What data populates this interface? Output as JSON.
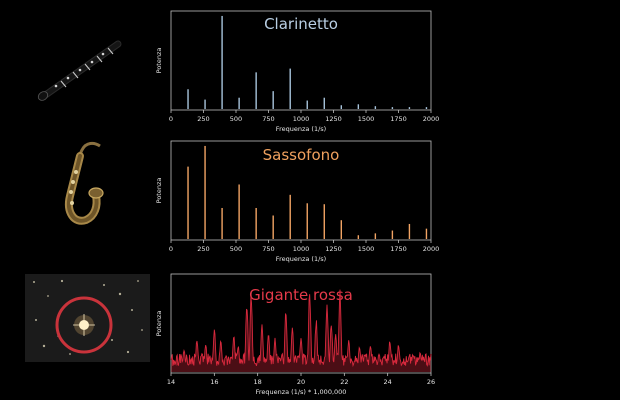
{
  "chart_data": [
    {
      "type": "bar",
      "title": "Clarinetto",
      "title_color": "#b9cfe4",
      "bar_color": "#a8c4dc",
      "xlabel": "Frequenza (1/s)",
      "ylabel": "Potenza",
      "xlim": [
        0,
        2000
      ],
      "ylim": [
        0,
        1
      ],
      "xticks": [
        0,
        250,
        500,
        750,
        1000,
        1250,
        1500,
        1750,
        2000
      ],
      "x": [
        131,
        262,
        393,
        524,
        655,
        786,
        917,
        1048,
        1179,
        1310,
        1441,
        1572,
        1703,
        1834,
        1965
      ],
      "values": [
        0.21,
        0.1,
        0.99,
        0.12,
        0.39,
        0.19,
        0.43,
        0.09,
        0.12,
        0.04,
        0.05,
        0.03,
        0.02,
        0.02,
        0.02
      ]
    },
    {
      "type": "bar",
      "title": "Sassofono",
      "title_color": "#f0a15e",
      "bar_color": "#f2a464",
      "xlabel": "Frequenza (1/s)",
      "ylabel": "Potenza",
      "xlim": [
        0,
        2000
      ],
      "ylim": [
        0,
        1
      ],
      "xticks": [
        0,
        250,
        500,
        750,
        1000,
        1250,
        1500,
        1750,
        2000
      ],
      "x": [
        131,
        262,
        393,
        524,
        655,
        786,
        917,
        1048,
        1179,
        1310,
        1441,
        1572,
        1703,
        1834,
        1965
      ],
      "values": [
        0.77,
        0.99,
        0.33,
        0.58,
        0.33,
        0.25,
        0.47,
        0.38,
        0.37,
        0.2,
        0.04,
        0.06,
        0.09,
        0.16,
        0.11
      ]
    },
    {
      "type": "line",
      "title": "Gigante rossa",
      "title_color": "#e53a4a",
      "line_color": "#d8293d",
      "xlabel": "Frequenza (1/s) * 1,000,000",
      "ylabel": "Potenza",
      "xlim": [
        14,
        26
      ],
      "ylim": [
        0,
        1
      ],
      "xticks": [
        14,
        16,
        18,
        20,
        22,
        24,
        26
      ],
      "baseline": 0.13,
      "peaks": [
        {
          "x": 14.6,
          "y": 0.25
        },
        {
          "x": 15.2,
          "y": 0.38
        },
        {
          "x": 15.6,
          "y": 0.32
        },
        {
          "x": 16.0,
          "y": 0.48
        },
        {
          "x": 16.3,
          "y": 0.36
        },
        {
          "x": 16.9,
          "y": 0.44
        },
        {
          "x": 17.1,
          "y": 0.3
        },
        {
          "x": 17.5,
          "y": 0.78
        },
        {
          "x": 17.7,
          "y": 0.88
        },
        {
          "x": 18.2,
          "y": 0.55
        },
        {
          "x": 18.5,
          "y": 0.42
        },
        {
          "x": 18.8,
          "y": 0.38
        },
        {
          "x": 19.3,
          "y": 0.72
        },
        {
          "x": 19.6,
          "y": 0.5
        },
        {
          "x": 20.0,
          "y": 0.4
        },
        {
          "x": 20.4,
          "y": 0.92
        },
        {
          "x": 20.7,
          "y": 0.58
        },
        {
          "x": 21.2,
          "y": 0.78
        },
        {
          "x": 21.4,
          "y": 0.55
        },
        {
          "x": 21.6,
          "y": 0.42
        },
        {
          "x": 21.8,
          "y": 0.9
        },
        {
          "x": 22.2,
          "y": 0.35
        },
        {
          "x": 22.7,
          "y": 0.28
        },
        {
          "x": 23.2,
          "y": 0.3
        },
        {
          "x": 23.6,
          "y": 0.22
        },
        {
          "x": 24.1,
          "y": 0.35
        },
        {
          "x": 24.5,
          "y": 0.3
        },
        {
          "x": 25.0,
          "y": 0.2
        },
        {
          "x": 25.5,
          "y": 0.22
        }
      ]
    }
  ]
}
